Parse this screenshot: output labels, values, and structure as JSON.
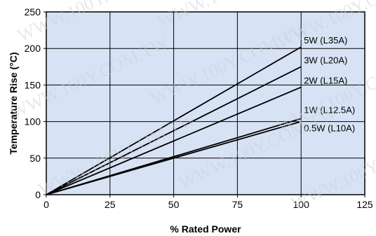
{
  "chart_data": {
    "type": "line",
    "title": "",
    "xlabel": "% Rated Power",
    "ylabel": "Temperature Rise (°C)",
    "xlim": [
      0,
      125
    ],
    "ylim": [
      0,
      250
    ],
    "x_ticks": [
      0,
      25,
      50,
      75,
      100,
      125
    ],
    "y_ticks": [
      0,
      50,
      100,
      150,
      200,
      250
    ],
    "grid": true,
    "plot_background": "#d7e3f4",
    "line_color": "#000000",
    "series": [
      {
        "name": "5W (L35A)",
        "x": [
          0,
          100
        ],
        "y": [
          0,
          202
        ]
      },
      {
        "name": "3W (L20A)",
        "x": [
          0,
          100
        ],
        "y": [
          0,
          175
        ]
      },
      {
        "name": "2W (L15A)",
        "x": [
          0,
          100
        ],
        "y": [
          0,
          147
        ]
      },
      {
        "name": "1W (L12.5A)",
        "x": [
          0,
          100
        ],
        "y": [
          0,
          104
        ]
      },
      {
        "name": "0.5W (L10A)",
        "x": [
          0,
          100
        ],
        "y": [
          0,
          100
        ]
      }
    ]
  },
  "watermark_text": "WWW.100Y.COM.TW"
}
